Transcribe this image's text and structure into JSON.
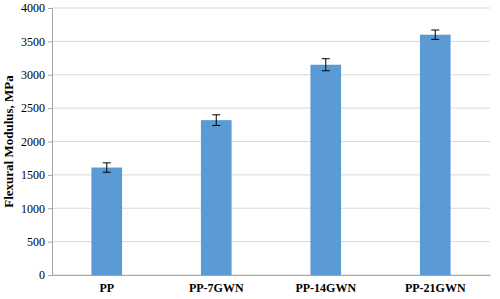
{
  "chart_data": {
    "type": "bar",
    "categories": [
      "PP",
      "PP-7GWN",
      "PP-14GWN",
      "PP-21GWN"
    ],
    "values": [
      1610,
      2320,
      3150,
      3600
    ],
    "errors": [
      70,
      80,
      90,
      70
    ],
    "color": "#5b9bd5",
    "y_label": "Flexural Modulus, MPa",
    "ylim": [
      0,
      4000
    ],
    "yticks": [
      0,
      500,
      1000,
      1500,
      2000,
      2500,
      3000,
      3500,
      4000
    ],
    "grid": true
  }
}
